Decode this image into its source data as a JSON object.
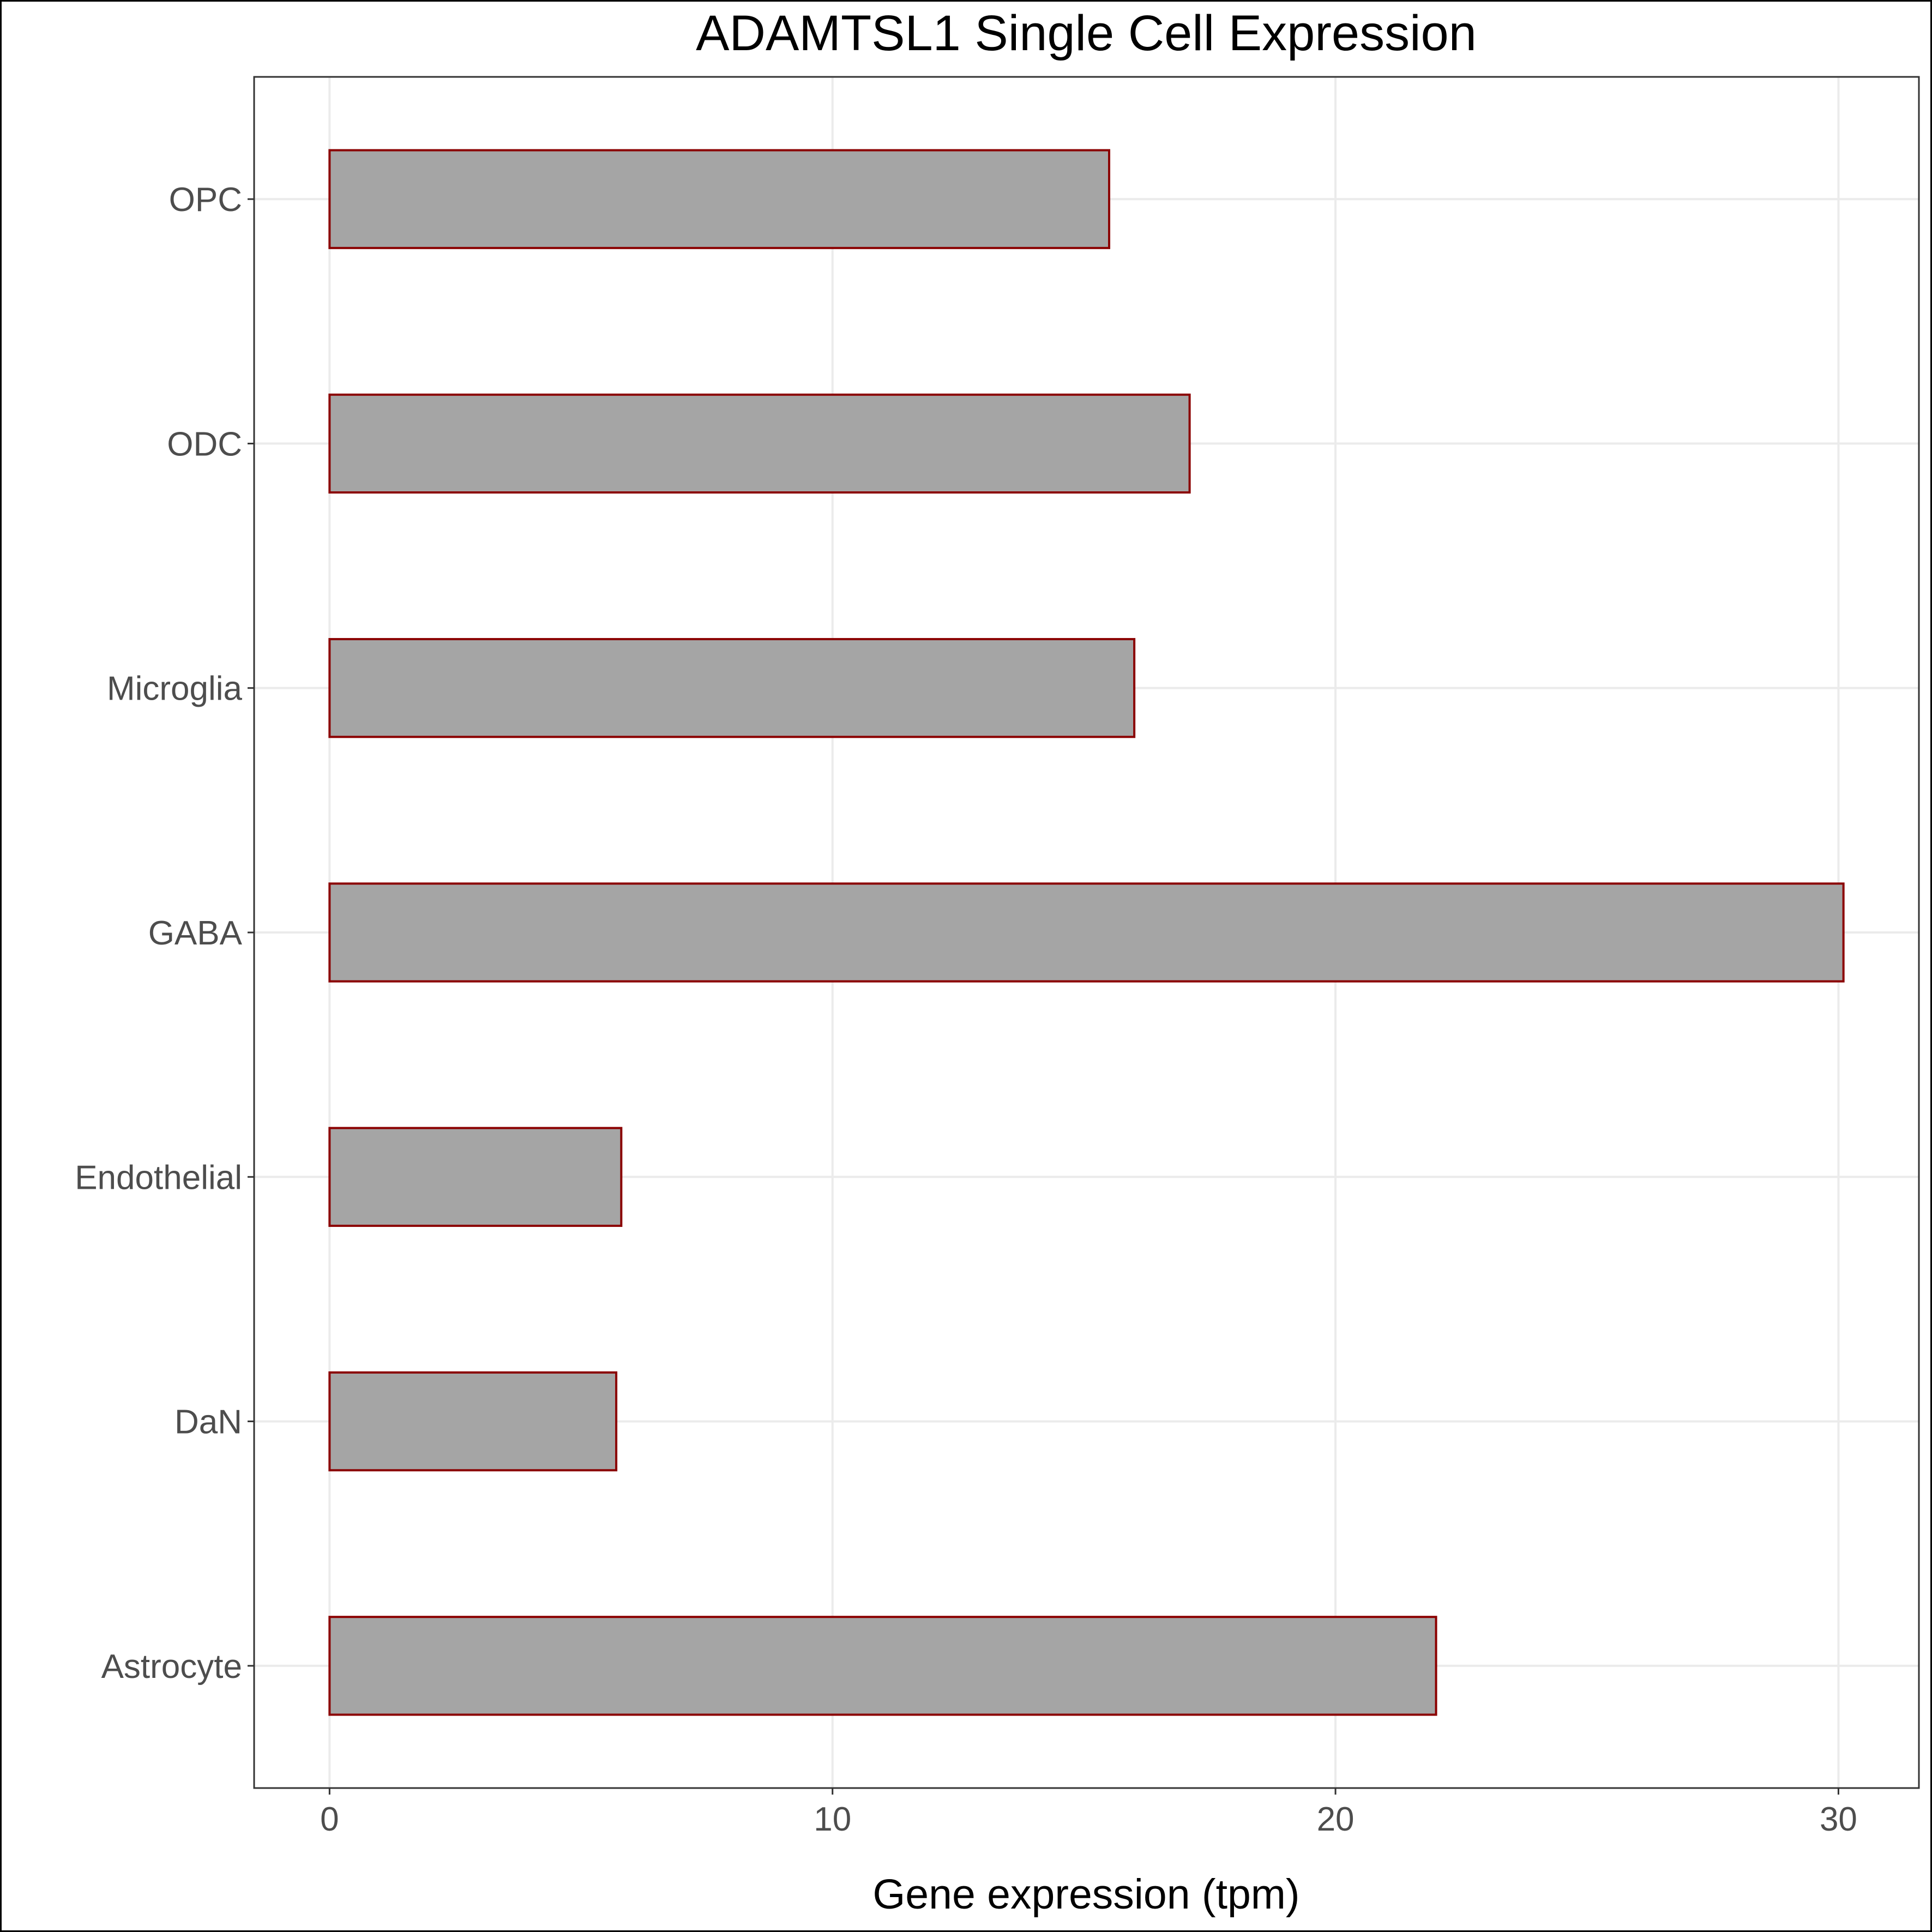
{
  "chart_data": {
    "type": "bar",
    "orientation": "horizontal",
    "title": "ADAMTSL1 Single Cell Expression",
    "xlabel": "Gene expression (tpm)",
    "ylabel": "",
    "categories": [
      "Astrocyte",
      "DaN",
      "Endothelial",
      "GABA",
      "Microglia",
      "ODC",
      "OPC"
    ],
    "values": [
      22.0,
      5.7,
      5.8,
      30.1,
      16.0,
      17.1,
      15.5
    ],
    "xlim": [
      -1.5,
      31.6
    ],
    "xticks": [
      0,
      10,
      20,
      30
    ],
    "xtick_labels": [
      "0",
      "10",
      "20",
      "30"
    ],
    "grid": true,
    "legend": "none",
    "colors": {
      "bar_fill": "#a5a5a5",
      "bar_outline": "#8b0000",
      "grid": "#ebebeb",
      "panel_border": "#333333",
      "tick_text": "#4d4d4d",
      "title_text": "#000000"
    }
  }
}
